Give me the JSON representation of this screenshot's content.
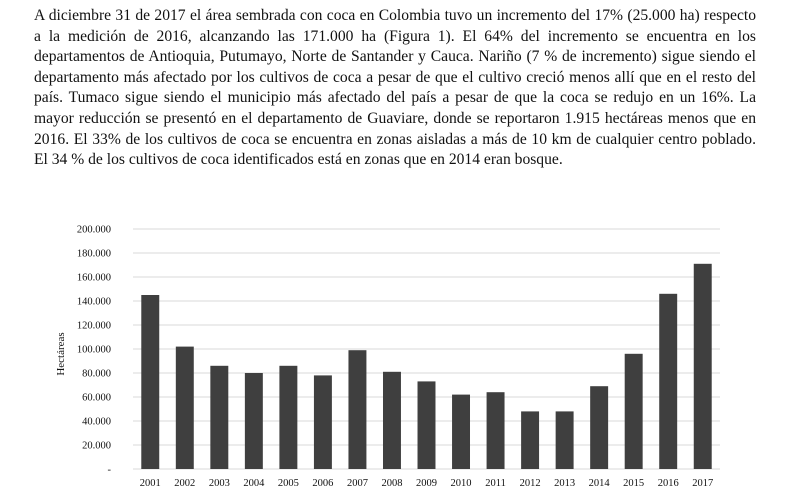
{
  "text": {
    "paragraph": "A diciembre 31 de 2017 el área sembrada con coca en Colombia tuvo un incremento del 17% (25.000 ha) respecto a la medición de 2016, alcanzando las 171.000 ha (Figura 1). El 64% del incremento se encuentra en los departamentos de Antioquia, Putumayo, Norte de Santander y Cauca. Nariño (7 % de incremento) sigue siendo el departamento más afectado por los cultivos de coca a pesar de que el cultivo creció menos allí que en el resto del país. Tumaco sigue siendo el municipio más afectado del país a pesar de que la coca se redujo en un 16%. La mayor reducción se presentó en el departamento de Guaviare, donde se reportaron 1.915 hectáreas menos que en 2016. El 33% de los cultivos de coca se encuentra en zonas aisladas a más de 10 km de cualquier centro poblado. El 34 % de los cultivos de coca identificados está en zonas que en 2014 eran bosque."
  },
  "chart_data": {
    "type": "bar",
    "ylabel": "Hectáreas",
    "xlabel": "",
    "ylim": [
      0,
      200000
    ],
    "grid": true,
    "bar_color": "#3f3f3f",
    "grid_color": "#d9d9d9",
    "y_ticks": [
      {
        "value": 0,
        "label": "-"
      },
      {
        "value": 20000,
        "label": "20.000"
      },
      {
        "value": 40000,
        "label": "40.000"
      },
      {
        "value": 60000,
        "label": "60.000"
      },
      {
        "value": 80000,
        "label": "80.000"
      },
      {
        "value": 100000,
        "label": "100.000"
      },
      {
        "value": 120000,
        "label": "120.000"
      },
      {
        "value": 140000,
        "label": "140.000"
      },
      {
        "value": 160000,
        "label": "160.000"
      },
      {
        "value": 180000,
        "label": "180.000"
      },
      {
        "value": 200000,
        "label": "200.000"
      }
    ],
    "categories": [
      "2001",
      "2002",
      "2003",
      "2004",
      "2005",
      "2006",
      "2007",
      "2008",
      "2009",
      "2010",
      "2011",
      "2012",
      "2013",
      "2014",
      "2015",
      "2016",
      "2017"
    ],
    "values": [
      145000,
      102000,
      86000,
      80000,
      86000,
      78000,
      99000,
      81000,
      73000,
      62000,
      64000,
      48000,
      48000,
      69000,
      96000,
      146000,
      171000
    ]
  }
}
